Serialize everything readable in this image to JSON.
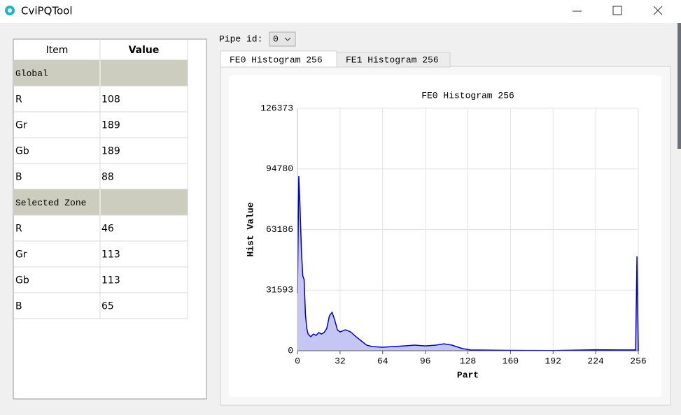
{
  "window": {
    "title": "CviPQTool"
  },
  "table": {
    "headers": [
      "Item",
      "Value"
    ],
    "rows": [
      [
        "Global"
      ],
      [
        "R",
        108
      ],
      [
        "Gr",
        189
      ],
      [
        "Gb",
        189
      ],
      [
        "B",
        88
      ],
      [
        "Selected Zone"
      ],
      [
        "R",
        46
      ],
      [
        "Gr",
        113
      ],
      [
        "Gb",
        113
      ],
      [
        "B",
        65
      ]
    ]
  },
  "pipe": {
    "label": "Pipe id:",
    "value": 0
  },
  "tabs": [
    "FE0 Histogram 256",
    "FE1 Histogram 256"
  ],
  "chart_data": {
    "type": "area",
    "title": "FE0 Histogram 256",
    "x_label": "Part",
    "y_label": "Hist Value",
    "x": [
      0,
      1,
      2,
      3,
      4,
      5,
      6,
      7,
      8,
      10,
      12,
      14,
      16,
      18,
      20,
      22,
      24,
      26,
      28,
      30,
      32,
      36,
      40,
      44,
      48,
      52,
      56,
      64,
      72,
      80,
      88,
      96,
      104,
      110,
      116,
      124,
      130,
      160,
      192,
      224,
      240,
      254,
      255,
      256
    ],
    "values": [
      29900,
      91000,
      73500,
      51700,
      39000,
      37100,
      18900,
      11600,
      8700,
      7300,
      8700,
      8000,
      9500,
      8700,
      9500,
      11600,
      18200,
      20000,
      16000,
      10900,
      9800,
      10900,
      9800,
      7300,
      5100,
      2900,
      2200,
      1800,
      2200,
      2500,
      2900,
      2500,
      2900,
      3600,
      2900,
      1100,
      400,
      200,
      100,
      500,
      400,
      400,
      49200,
      0
    ],
    "color": "#0000c8",
    "fill": "#c6c6f4",
    "xlim": [
      0,
      256
    ],
    "xticks": [
      0,
      32,
      64,
      96,
      128,
      160,
      192,
      224,
      256
    ],
    "ylim": [
      0,
      126373
    ],
    "yticks": [
      0,
      31593,
      63186,
      94780,
      126373
    ],
    "grid": true
  }
}
